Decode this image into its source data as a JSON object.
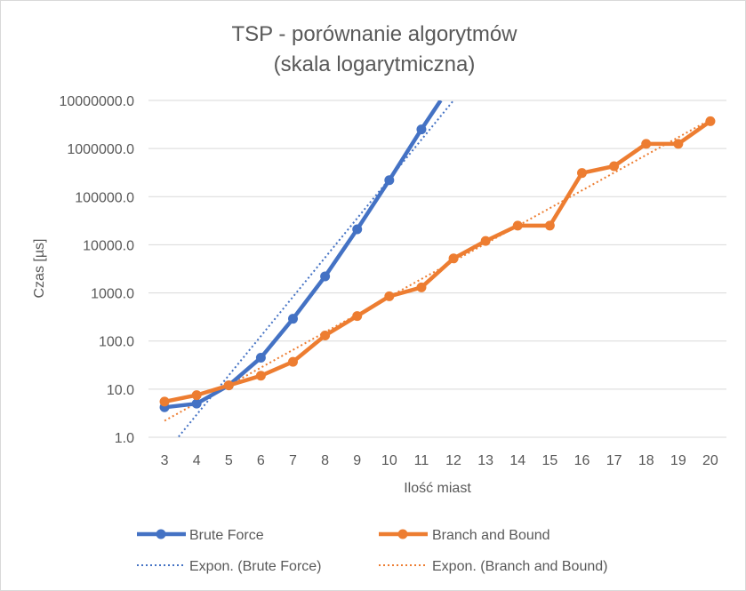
{
  "chart_data": {
    "type": "line",
    "title": [
      "TSP - porównanie algorytmów",
      "(skala logarytmiczna)"
    ],
    "xlabel": "Ilość miast",
    "ylabel": "Czas [µs]",
    "y_scale": "log",
    "ylim": [
      1,
      10000000
    ],
    "y_tick_labels": [
      "1.0",
      "10.0",
      "100.0",
      "1000.0",
      "10000.0",
      "100000.0",
      "1000000.0",
      "10000000.0"
    ],
    "categories": [
      "3",
      "4",
      "5",
      "6",
      "7",
      "8",
      "9",
      "10",
      "11",
      "12",
      "13",
      "14",
      "15",
      "16",
      "17",
      "18",
      "19",
      "20"
    ],
    "grid": true,
    "legend_position": "bottom",
    "series": [
      {
        "name": "Brute Force",
        "color": "#4472c4",
        "x": [
          3,
          4,
          5,
          6,
          7,
          8,
          9,
          10,
          11,
          11.6
        ],
        "values": [
          4.2,
          5,
          12,
          45,
          290,
          2200,
          21000,
          220000,
          2500000,
          10000000
        ]
      },
      {
        "name": "Branch and Bound",
        "color": "#ed7d31",
        "x": [
          3,
          4,
          5,
          6,
          7,
          8,
          9,
          10,
          11,
          12,
          13,
          14,
          15,
          16,
          17,
          18,
          19,
          20
        ],
        "values": [
          5.5,
          7.5,
          12,
          19,
          37,
          130,
          330,
          850,
          1300,
          5200,
          12000,
          25000,
          25000,
          310000,
          430000,
          1250000,
          1250000,
          3700000
        ]
      }
    ],
    "trendlines": [
      {
        "name": "Expon. (Brute Force)",
        "color": "#4472c4",
        "style": "dotted",
        "x": [
          3,
          12
        ],
        "values": [
          0.45,
          10000000
        ]
      },
      {
        "name": "Expon. (Branch and Bound)",
        "color": "#ed7d31",
        "style": "dotted",
        "x": [
          3,
          20
        ],
        "values": [
          2.2,
          4000000
        ]
      }
    ]
  }
}
